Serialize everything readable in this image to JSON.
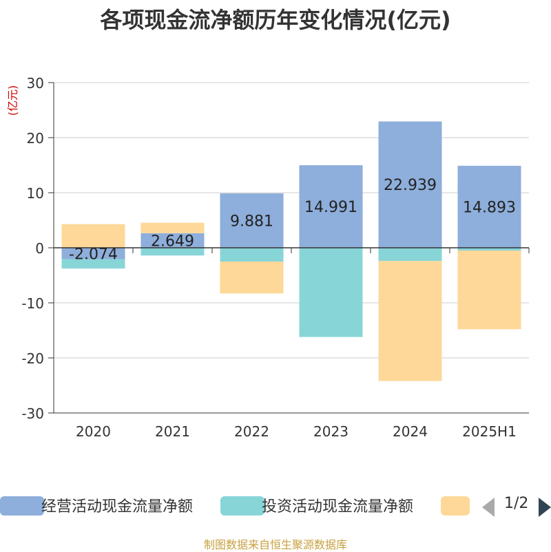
{
  "title": "各项现金流净额历年变化情况(亿元)",
  "source": "制图数据来自恒生聚源数据库",
  "legend": {
    "pager": "1/2",
    "items": [
      {
        "label": "经营活动现金流量净额",
        "color": "#8eaedb"
      },
      {
        "label": "投资活动现金流量净额",
        "color": "#88d5d8"
      },
      {
        "label": "",
        "color": "#fdd898"
      }
    ]
  },
  "chart_data": {
    "type": "bar",
    "stacked": true,
    "ylabel": "(亿元)",
    "ylim": [
      -30,
      30
    ],
    "yticks": [
      30,
      20,
      10,
      0,
      -10,
      -20,
      -30
    ],
    "grid": true,
    "legend_position": "bottom",
    "categories": [
      "2020",
      "2021",
      "2022",
      "2023",
      "2024",
      "2025H1"
    ],
    "series": [
      {
        "name": "经营活动现金流量净额",
        "color": "#8eaedb",
        "values": [
          -2.074,
          2.649,
          9.881,
          14.991,
          22.939,
          14.893
        ],
        "labels": [
          "-2.074",
          "2.649",
          "9.881",
          "14.991",
          "22.939",
          "14.893"
        ]
      },
      {
        "name": "投资活动现金流量净额",
        "color": "#88d5d8",
        "values": [
          -1.7,
          -1.4,
          -2.5,
          -16.2,
          -2.4,
          -0.5
        ]
      },
      {
        "name": "",
        "color": "#fdd898",
        "values": [
          4.3,
          1.9,
          -5.8,
          0,
          -21.8,
          -14.3
        ]
      }
    ]
  }
}
